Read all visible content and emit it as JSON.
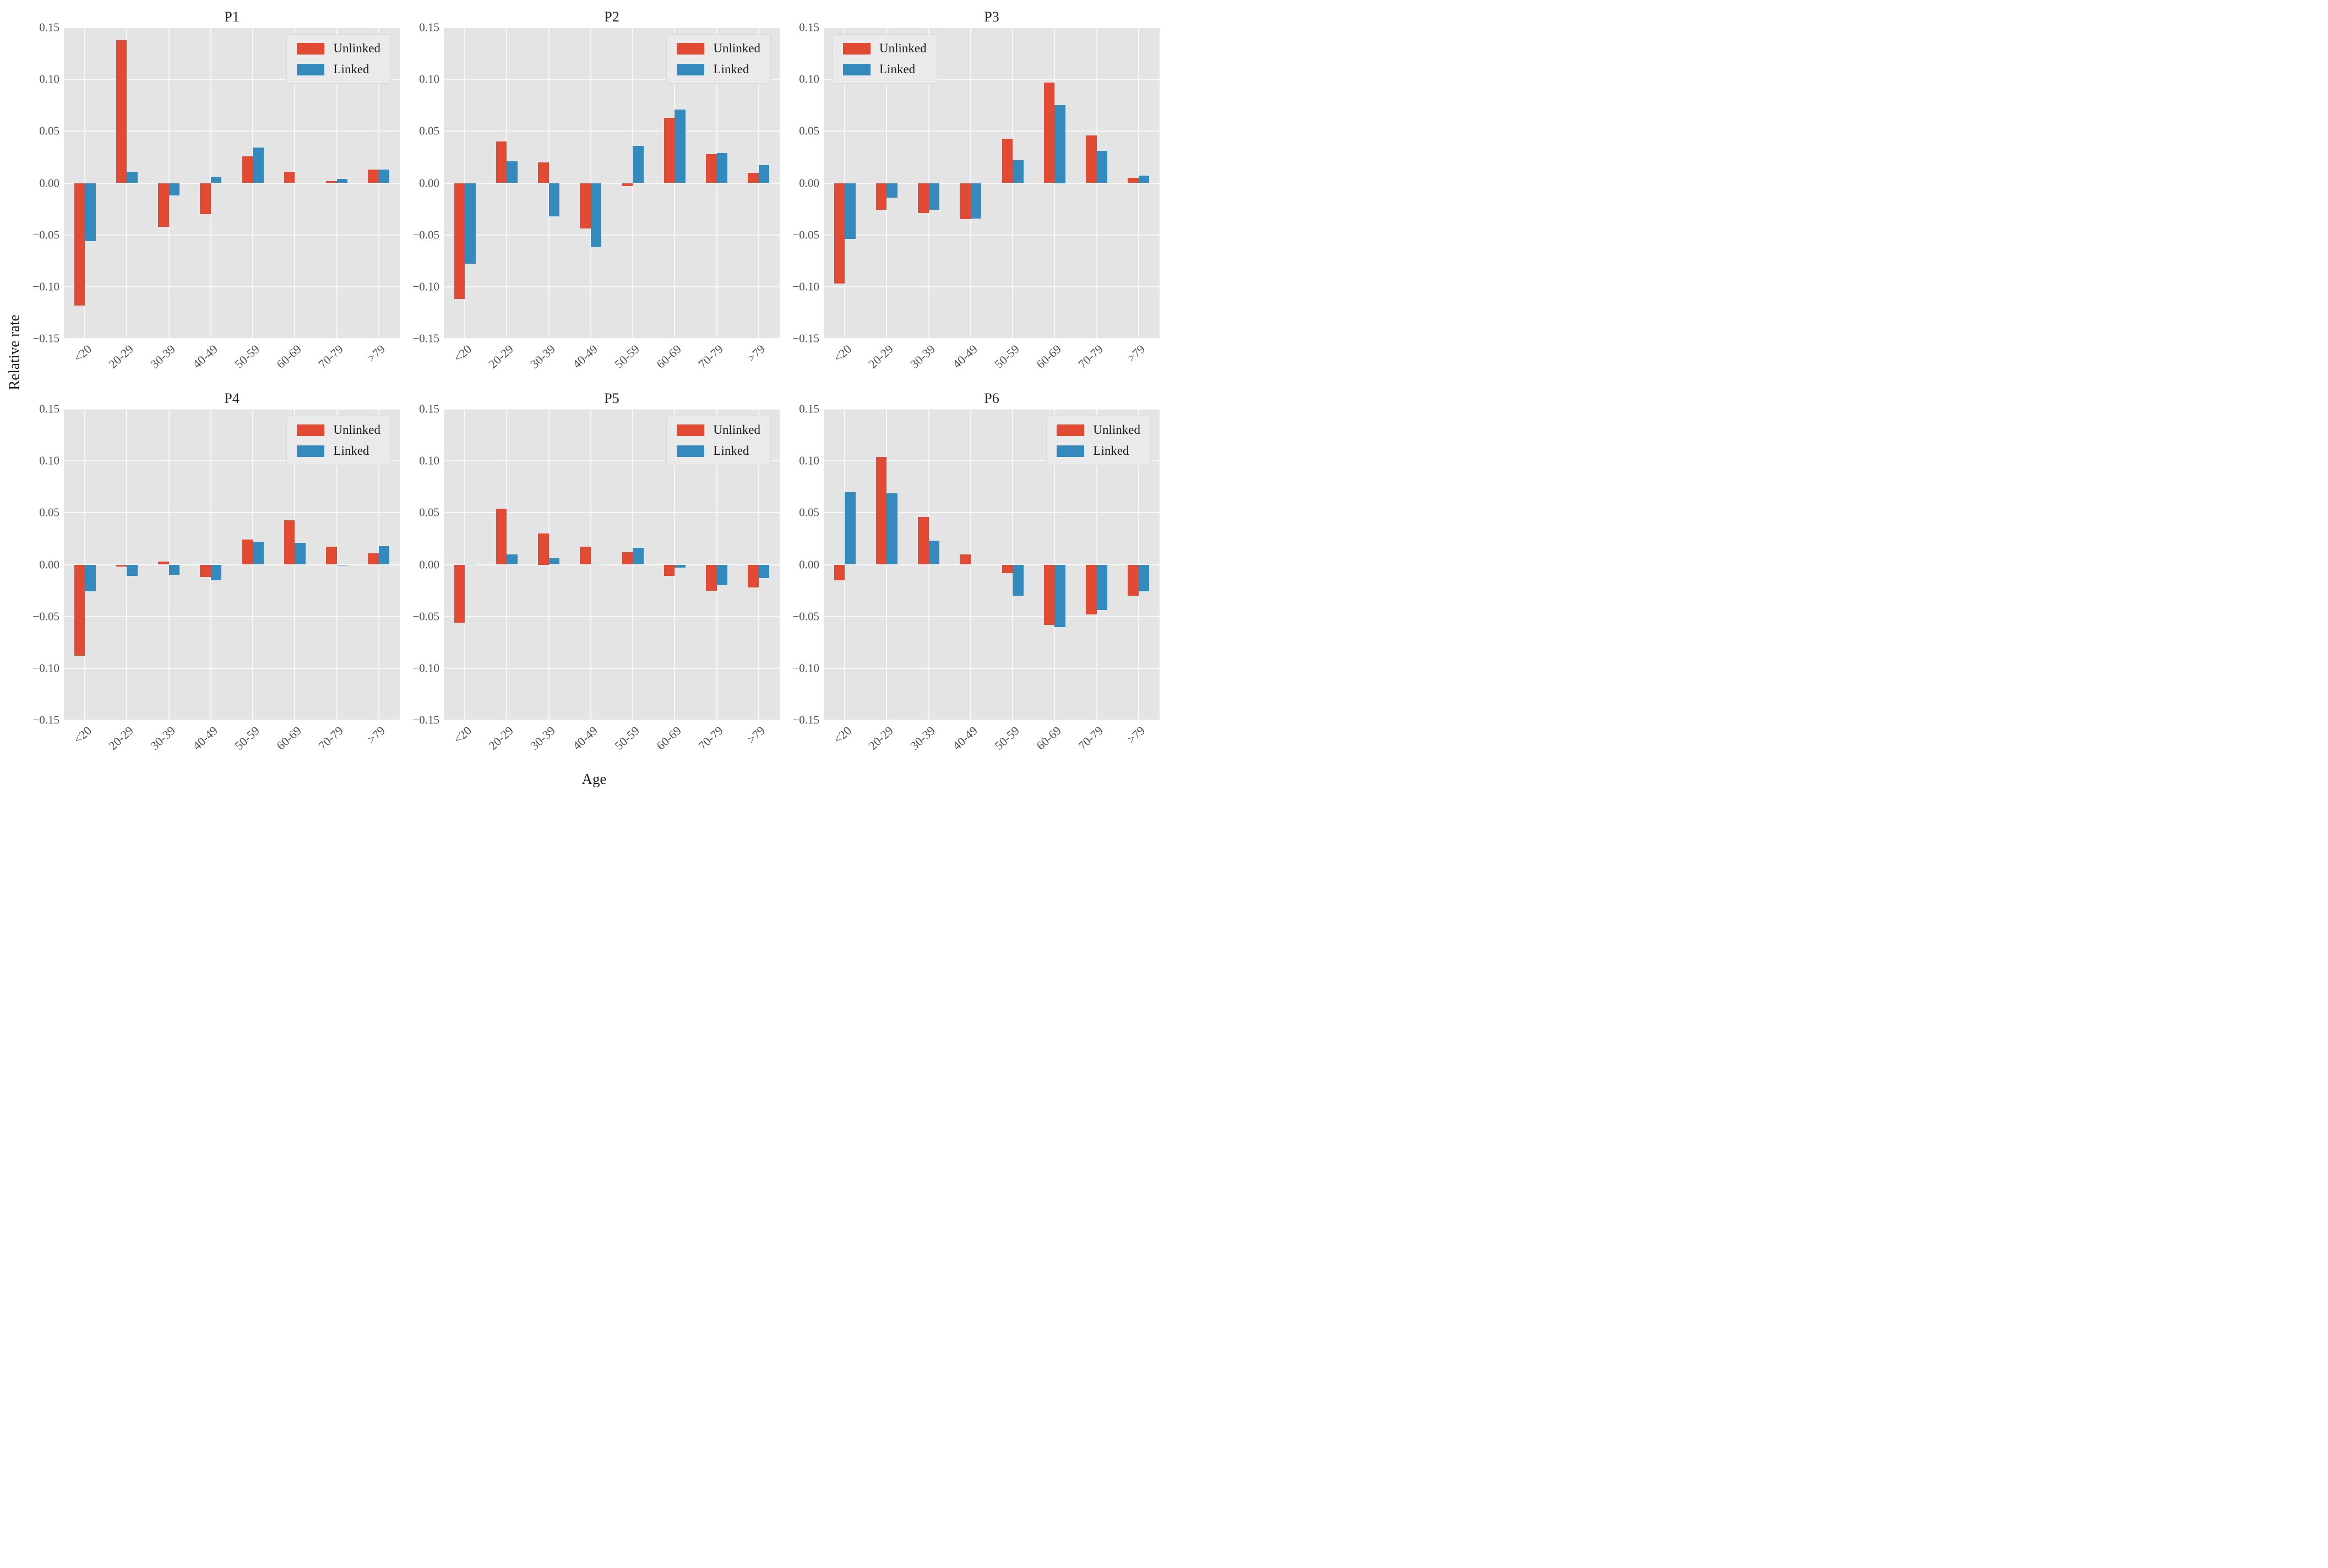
{
  "figure": {
    "ylabel": "Relative rate",
    "xlabel": "Age",
    "yticks": [
      "0.15",
      "0.10",
      "0.05",
      "0.00",
      "−0.05",
      "−0.10",
      "−0.15"
    ],
    "ytick_values": [
      0.15,
      0.1,
      0.05,
      0.0,
      -0.05,
      -0.1,
      -0.15
    ],
    "legend_labels": [
      "Unlinked",
      "Linked"
    ],
    "colors": {
      "unlinked": "#E24A33",
      "linked": "#348ABD",
      "panel_bg": "#E5E4E4",
      "grid": "#F8F7F7",
      "tick_text": "#4f4f4f",
      "title_text": "#262626"
    }
  },
  "chart_data": [
    {
      "type": "bar",
      "title": "P1",
      "legend_position": "top-right",
      "ylim": [
        -0.15,
        0.15
      ],
      "categories": [
        "<20",
        "20-29",
        "30-39",
        "40-49",
        "50-59",
        "60-69",
        "70-79",
        ">79"
      ],
      "series": [
        {
          "name": "Unlinked",
          "values": [
            -0.118,
            0.138,
            -0.042,
            -0.03,
            0.026,
            0.011,
            0.002,
            0.013
          ]
        },
        {
          "name": "Linked",
          "values": [
            -0.056,
            0.011,
            -0.012,
            0.006,
            0.034,
            0.0,
            0.004,
            0.013
          ]
        }
      ]
    },
    {
      "type": "bar",
      "title": "P2",
      "legend_position": "top-right",
      "ylim": [
        -0.15,
        0.15
      ],
      "categories": [
        "<20",
        "20-29",
        "30-39",
        "40-49",
        "50-59",
        "60-69",
        "70-79",
        ">79"
      ],
      "series": [
        {
          "name": "Unlinked",
          "values": [
            -0.112,
            0.04,
            0.02,
            -0.044,
            -0.003,
            0.063,
            0.028,
            0.01
          ]
        },
        {
          "name": "Linked",
          "values": [
            -0.078,
            0.021,
            -0.032,
            -0.062,
            0.036,
            0.071,
            0.029,
            0.017
          ]
        }
      ]
    },
    {
      "type": "bar",
      "title": "P3",
      "legend_position": "top-left",
      "ylim": [
        -0.15,
        0.15
      ],
      "categories": [
        "<20",
        "20-29",
        "30-39",
        "40-49",
        "50-59",
        "60-69",
        "70-79",
        ">79"
      ],
      "series": [
        {
          "name": "Unlinked",
          "values": [
            -0.097,
            -0.026,
            -0.029,
            -0.035,
            0.043,
            0.097,
            0.046,
            0.005
          ]
        },
        {
          "name": "Linked",
          "values": [
            -0.054,
            -0.014,
            -0.026,
            -0.034,
            0.022,
            0.075,
            0.031,
            0.007
          ]
        }
      ]
    },
    {
      "type": "bar",
      "title": "P4",
      "legend_position": "top-right",
      "ylim": [
        -0.15,
        0.15
      ],
      "categories": [
        "<20",
        "20-29",
        "30-39",
        "40-49",
        "50-59",
        "60-69",
        "70-79",
        ">79"
      ],
      "series": [
        {
          "name": "Unlinked",
          "values": [
            -0.088,
            -0.002,
            0.003,
            -0.012,
            0.024,
            0.043,
            0.017,
            0.011
          ]
        },
        {
          "name": "Linked",
          "values": [
            -0.026,
            -0.011,
            -0.01,
            -0.015,
            0.022,
            0.021,
            -0.001,
            0.018
          ]
        }
      ]
    },
    {
      "type": "bar",
      "title": "P5",
      "legend_position": "top-right",
      "ylim": [
        -0.15,
        0.15
      ],
      "categories": [
        "<20",
        "20-29",
        "30-39",
        "40-49",
        "50-59",
        "60-69",
        "70-79",
        ">79"
      ],
      "series": [
        {
          "name": "Unlinked",
          "values": [
            -0.056,
            0.054,
            0.03,
            0.017,
            0.012,
            -0.011,
            -0.025,
            -0.022
          ]
        },
        {
          "name": "Linked",
          "values": [
            0.001,
            0.01,
            0.006,
            0.001,
            0.016,
            -0.003,
            -0.02,
            -0.013
          ]
        }
      ]
    },
    {
      "type": "bar",
      "title": "P6",
      "legend_position": "top-right",
      "ylim": [
        -0.15,
        0.15
      ],
      "categories": [
        "<20",
        "20-29",
        "30-39",
        "40-49",
        "50-59",
        "60-69",
        "70-79",
        ">79"
      ],
      "series": [
        {
          "name": "Unlinked",
          "values": [
            -0.015,
            0.104,
            0.046,
            0.01,
            -0.008,
            -0.058,
            -0.048,
            -0.03
          ]
        },
        {
          "name": "Linked",
          "values": [
            0.07,
            0.069,
            0.023,
            0.0,
            -0.03,
            -0.06,
            -0.044,
            -0.026
          ]
        }
      ]
    }
  ]
}
